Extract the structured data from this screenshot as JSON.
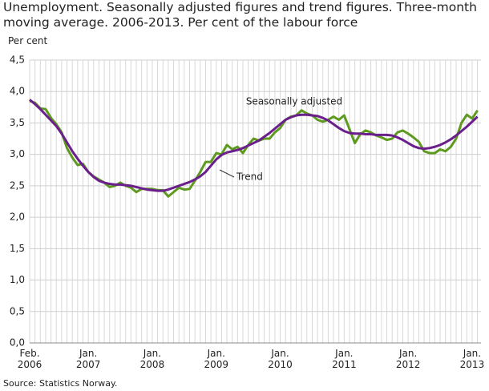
{
  "chart_data": {
    "type": "line",
    "title": "Unemployment. Seasonally adjusted figures and trend figures. Three-month moving average. 2006-2013. Per cent of the labour force",
    "y_label": "Per cent",
    "source": "Source: Statistics Norway.",
    "categories": [
      "Feb.\n2006",
      null,
      null,
      null,
      null,
      null,
      null,
      null,
      null,
      null,
      null,
      "Jan.\n2007",
      null,
      null,
      null,
      null,
      null,
      null,
      null,
      null,
      null,
      null,
      null,
      "Jan.\n2008",
      null,
      null,
      null,
      null,
      null,
      null,
      null,
      null,
      null,
      null,
      null,
      "Jan.\n2009",
      null,
      null,
      null,
      null,
      null,
      null,
      null,
      null,
      null,
      null,
      null,
      "Jan.\n2010",
      null,
      null,
      null,
      null,
      null,
      null,
      null,
      null,
      null,
      null,
      null,
      "Jan.\n2011",
      null,
      null,
      null,
      null,
      null,
      null,
      null,
      null,
      null,
      null,
      null,
      "Jan.\n2012",
      null,
      null,
      null,
      null,
      null,
      null,
      null,
      null,
      null,
      null,
      null,
      "Jan.\n2013",
      null
    ],
    "series": [
      {
        "name": "Seasonally adjusted",
        "color": "#5e9a1f",
        "values": [
          3.85,
          3.82,
          3.73,
          3.72,
          3.58,
          3.48,
          3.35,
          3.1,
          2.95,
          2.83,
          2.85,
          2.72,
          2.65,
          2.6,
          2.55,
          2.48,
          2.5,
          2.55,
          2.5,
          2.47,
          2.4,
          2.45,
          2.45,
          2.45,
          2.43,
          2.43,
          2.33,
          2.4,
          2.47,
          2.44,
          2.45,
          2.58,
          2.72,
          2.88,
          2.88,
          3.02,
          3.0,
          3.15,
          3.08,
          3.12,
          3.02,
          3.15,
          3.25,
          3.22,
          3.25,
          3.25,
          3.35,
          3.42,
          3.55,
          3.6,
          3.62,
          3.7,
          3.65,
          3.62,
          3.55,
          3.52,
          3.55,
          3.6,
          3.55,
          3.62,
          3.4,
          3.18,
          3.32,
          3.38,
          3.35,
          3.3,
          3.27,
          3.23,
          3.25,
          3.35,
          3.38,
          3.33,
          3.27,
          3.2,
          3.05,
          3.02,
          3.02,
          3.08,
          3.05,
          3.12,
          3.25,
          3.5,
          3.63,
          3.57,
          3.7
        ]
      },
      {
        "name": "Trend",
        "color": "#6b1f8c",
        "values": [
          3.87,
          3.8,
          3.72,
          3.63,
          3.54,
          3.45,
          3.33,
          3.19,
          3.05,
          2.93,
          2.82,
          2.72,
          2.64,
          2.58,
          2.55,
          2.53,
          2.52,
          2.52,
          2.51,
          2.5,
          2.48,
          2.46,
          2.44,
          2.43,
          2.42,
          2.42,
          2.44,
          2.47,
          2.5,
          2.53,
          2.56,
          2.6,
          2.65,
          2.72,
          2.82,
          2.92,
          2.99,
          3.03,
          3.05,
          3.07,
          3.1,
          3.14,
          3.18,
          3.22,
          3.28,
          3.34,
          3.41,
          3.48,
          3.55,
          3.59,
          3.62,
          3.63,
          3.63,
          3.62,
          3.61,
          3.58,
          3.54,
          3.48,
          3.42,
          3.37,
          3.34,
          3.33,
          3.33,
          3.32,
          3.32,
          3.31,
          3.31,
          3.31,
          3.3,
          3.27,
          3.23,
          3.18,
          3.13,
          3.1,
          3.09,
          3.1,
          3.12,
          3.15,
          3.19,
          3.24,
          3.3,
          3.37,
          3.44,
          3.52,
          3.6
        ]
      }
    ],
    "ylim": [
      0,
      4.5
    ],
    "yticks": [
      {
        "value": 0,
        "label": "0,0"
      },
      {
        "value": 0.5,
        "label": "0,5"
      },
      {
        "value": 1,
        "label": "1,0"
      },
      {
        "value": 1.5,
        "label": "1,5"
      },
      {
        "value": 2,
        "label": "2,0"
      },
      {
        "value": 2.5,
        "label": "2,5"
      },
      {
        "value": 3,
        "label": "3,0"
      },
      {
        "value": 3.5,
        "label": "3,5"
      },
      {
        "value": 4,
        "label": "4,0"
      },
      {
        "value": 4.5,
        "label": "4,5"
      }
    ],
    "grid": true
  }
}
